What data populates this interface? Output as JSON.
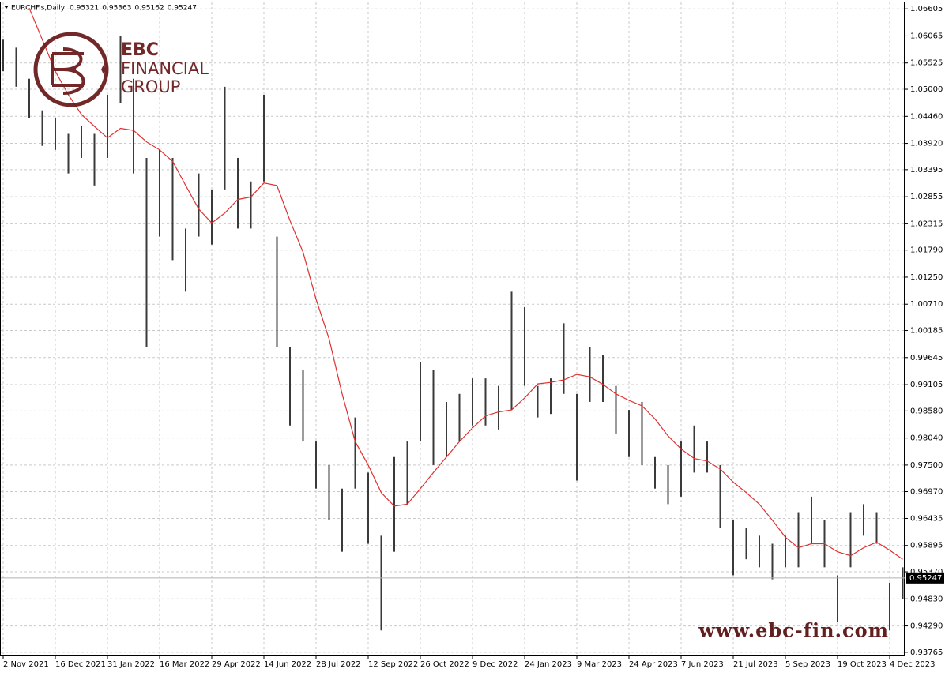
{
  "chart_data": {
    "type": "ohlc",
    "symbol": "EURCHF.s,Daily",
    "header_values": [
      0.95321,
      0.95363,
      0.95162,
      0.95247
    ],
    "current_price": 0.95247,
    "bar_color": "#3a3a3a",
    "ma_color": "#e03030",
    "grid": true,
    "categories": [
      "2 Nov 2021",
      null,
      null,
      null,
      "16 Dec 2021",
      null,
      null,
      null,
      "31 Jan 2022",
      null,
      null,
      null,
      "16 Mar 2022",
      null,
      null,
      null,
      "29 Apr 2022",
      null,
      null,
      null,
      "14 Jun 2022",
      null,
      null,
      null,
      "28 Jul 2022",
      null,
      null,
      null,
      "12 Sep 2022",
      null,
      null,
      null,
      "26 Oct 2022",
      null,
      null,
      null,
      "9 Dec 2022",
      null,
      null,
      null,
      "24 Jan 2023",
      null,
      null,
      null,
      "9 Mar 2023",
      null,
      null,
      null,
      "24 Apr 2023",
      null,
      null,
      null,
      "7 Jun 2023",
      null,
      null,
      null,
      "21 Jul 2023",
      null,
      null,
      null,
      "5 Sep 2023",
      null,
      null,
      null,
      "19 Oct 2023",
      null,
      null,
      null,
      "4 Dec 2023",
      null
    ],
    "high": [
      1.0599,
      1.0583,
      1.0521,
      1.0458,
      1.0442,
      1.0411,
      1.0426,
      1.0411,
      1.0489,
      1.0607,
      1.0521,
      1.0363,
      1.0379,
      1.0363,
      1.0222,
      1.0332,
      1.03,
      1.0505,
      1.0363,
      1.0316,
      1.0489,
      1.0206,
      0.9986,
      0.9939,
      0.9797,
      0.975,
      0.9703,
      0.9845,
      0.9735,
      0.9609,
      0.9766,
      0.9797,
      0.9955,
      0.9939,
      0.9876,
      0.9892,
      0.9923,
      0.9923,
      0.9908,
      1.0096,
      1.0065,
      0.9908,
      0.9923,
      1.0033,
      0.9892,
      0.9986,
      0.997,
      0.9908,
      0.986,
      0.9876,
      0.9766,
      0.975,
      0.9797,
      0.9829,
      0.9797,
      0.975,
      0.964,
      0.9625,
      0.9609,
      0.9593,
      0.9609,
      0.9656,
      0.9687,
      0.964,
      0.953,
      0.9656,
      0.9672,
      0.9656,
      0.9515,
      0.9546
    ],
    "low": [
      1.0536,
      1.0505,
      1.0442,
      1.0387,
      1.0379,
      1.0332,
      1.0363,
      1.0308,
      1.0363,
      1.0473,
      1.0332,
      0.9986,
      1.0206,
      1.0159,
      1.0096,
      1.0206,
      1.019,
      1.03,
      1.0222,
      1.0222,
      1.0316,
      0.9986,
      0.9829,
      0.9797,
      0.9703,
      0.964,
      0.9577,
      0.9703,
      0.9593,
      0.942,
      0.9577,
      0.9672,
      0.9797,
      0.975,
      0.9766,
      0.9797,
      0.9829,
      0.9829,
      0.9821,
      0.986,
      0.9908,
      0.9845,
      0.9852,
      0.9892,
      0.9719,
      0.9876,
      0.9876,
      0.9813,
      0.9766,
      0.975,
      0.9703,
      0.9672,
      0.9687,
      0.9735,
      0.9735,
      0.9625,
      0.953,
      0.9562,
      0.9546,
      0.9522,
      0.9546,
      0.9546,
      0.9593,
      0.9546,
      0.9436,
      0.9546,
      0.9609,
      0.9593,
      0.942,
      0.9483
    ],
    "ma": [
      null,
      null,
      1.0662,
      1.0599,
      1.0536,
      1.0489,
      1.045,
      1.0426,
      1.0403,
      1.0422,
      1.0418,
      1.0395,
      1.0379,
      1.0356,
      1.0308,
      1.0261,
      1.0233,
      1.0253,
      1.028,
      1.0285,
      1.0313,
      1.0308,
      1.0238,
      1.0175,
      1.0081,
      1.0002,
      0.9892,
      0.9797,
      0.975,
      0.9695,
      0.9668,
      0.9672,
      0.9703,
      0.9735,
      0.9766,
      0.9797,
      0.9824,
      0.9848,
      0.9856,
      0.986,
      0.9884,
      0.9912,
      0.9915,
      0.992,
      0.9931,
      0.9926,
      0.9911,
      0.9892,
      0.9879,
      0.9868,
      0.9842,
      0.9808,
      0.9782,
      0.9763,
      0.9758,
      0.9742,
      0.9716,
      0.9695,
      0.9672,
      0.964,
      0.9606,
      0.9585,
      0.9593,
      0.9593,
      0.9577,
      0.9569,
      0.9585,
      0.9596,
      0.958,
      0.9562
    ],
    "ylim": [
      0.937,
      1.0675
    ],
    "yticks": [
      1.06605,
      1.06065,
      1.05525,
      {
        "value": 1.05,
        "label": "1.05000"
      },
      {
        "value": 1.0446,
        "label": "1.04460"
      },
      {
        "value": 1.0392,
        "label": "1.03920"
      },
      1.03395,
      1.02855,
      1.02315,
      {
        "value": 1.0179,
        "label": "1.01790"
      },
      {
        "value": 1.0125,
        "label": "1.01250"
      },
      {
        "value": 1.0071,
        "label": "1.00710"
      },
      1.00185,
      0.99645,
      0.99105,
      {
        "value": 0.9858,
        "label": "0.98580"
      },
      {
        "value": 0.9804,
        "label": "0.98040"
      },
      {
        "value": 0.975,
        "label": "0.97500"
      },
      {
        "value": 0.9697,
        "label": "0.96970"
      },
      0.96435,
      0.95895,
      {
        "value": 0.9537,
        "label": "0.95370"
      },
      {
        "value": 0.9483,
        "label": "0.94830"
      },
      {
        "value": 0.9429,
        "label": "0.94290"
      },
      0.93765
    ],
    "watermark": {
      "brand": "EBC",
      "line1": "FINANCIAL",
      "line2": "GROUP",
      "url": "www.ebc-fin.com"
    }
  }
}
